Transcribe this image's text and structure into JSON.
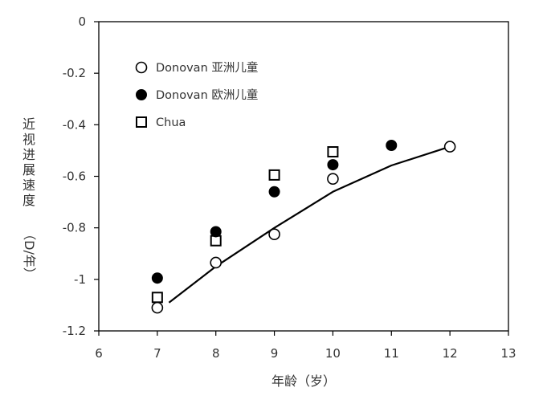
{
  "chart_data": {
    "type": "scatter",
    "title": "",
    "xlabel": "年龄（岁）",
    "ylabel_lines": [
      "近",
      "视",
      "进",
      "展",
      "速",
      "度",
      "（D/年）"
    ],
    "xlim": [
      6,
      13
    ],
    "ylim": [
      -1.2,
      0
    ],
    "xticks": [
      6,
      7,
      8,
      9,
      10,
      11,
      12,
      13
    ],
    "xtick_labels": [
      "6",
      "7",
      "8",
      "9",
      "10",
      "11",
      "12",
      "13"
    ],
    "yticks": [
      0,
      -0.2,
      -0.4,
      -0.6,
      -0.8,
      -1,
      -1.2
    ],
    "ytick_labels": [
      "0",
      "-0.2",
      "-0.4",
      "-0.6",
      "-0.8",
      "-1",
      "-1.2"
    ],
    "grid": false,
    "legend_position": "top-left",
    "series": [
      {
        "name": "Donovan 亚洲儿童",
        "marker": "open-circle",
        "color": "#000000",
        "points": [
          {
            "x": 7,
            "y": -1.11
          },
          {
            "x": 8,
            "y": -0.935
          },
          {
            "x": 9,
            "y": -0.825
          },
          {
            "x": 10,
            "y": -0.61
          },
          {
            "x": 12,
            "y": -0.485
          }
        ]
      },
      {
        "name": "Donovan 欧洲儿童",
        "marker": "filled-circle",
        "color": "#000000",
        "points": [
          {
            "x": 7,
            "y": -0.995
          },
          {
            "x": 8,
            "y": -0.815
          },
          {
            "x": 9,
            "y": -0.66
          },
          {
            "x": 10,
            "y": -0.555
          },
          {
            "x": 11,
            "y": -0.48
          }
        ]
      },
      {
        "name": "Chua",
        "marker": "open-square",
        "color": "#000000",
        "points": [
          {
            "x": 7,
            "y": -1.07
          },
          {
            "x": 8,
            "y": -0.85
          },
          {
            "x": 9,
            "y": -0.595
          },
          {
            "x": 10,
            "y": -0.505
          }
        ]
      }
    ],
    "trendline": {
      "type": "quadratic",
      "color": "#000000",
      "points": [
        {
          "x": 7.2,
          "y": -1.09
        },
        {
          "x": 8,
          "y": -0.95
        },
        {
          "x": 9,
          "y": -0.8
        },
        {
          "x": 10,
          "y": -0.66
        },
        {
          "x": 11,
          "y": -0.558
        },
        {
          "x": 12,
          "y": -0.485
        }
      ]
    }
  }
}
